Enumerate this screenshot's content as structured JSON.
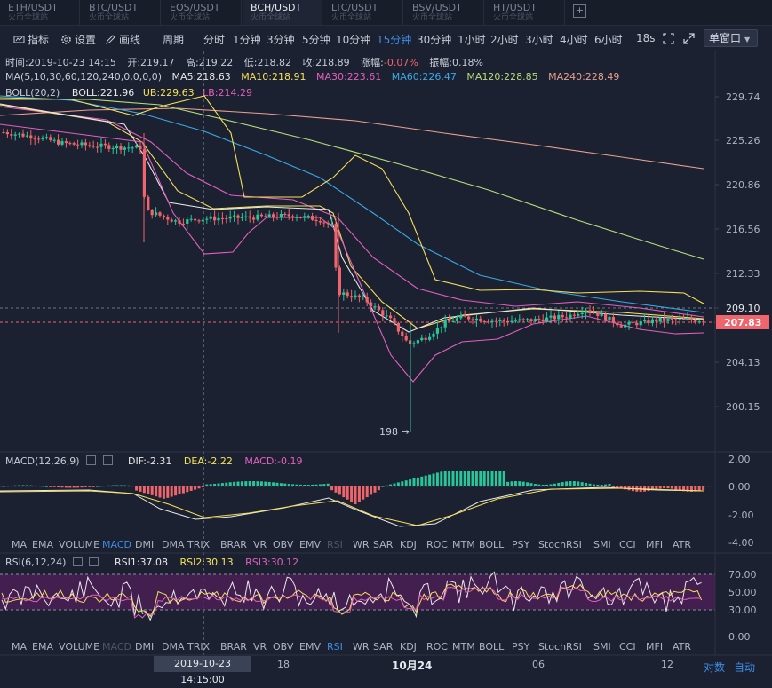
{
  "tabs": [
    {
      "pair": "ETH/USDT",
      "exchange": "火币全球站"
    },
    {
      "pair": "BTC/USDT",
      "exchange": "火币全球站"
    },
    {
      "pair": "EOS/USDT",
      "exchange": "火币全球站"
    },
    {
      "pair": "BCH/USDT",
      "exchange": "火币全球站",
      "active": true
    },
    {
      "pair": "LTC/USDT",
      "exchange": "火币全球站"
    },
    {
      "pair": "BSV/USDT",
      "exchange": "火币全球站"
    },
    {
      "pair": "HT/USDT",
      "exchange": "火币全球站"
    }
  ],
  "add_tab": "+",
  "toolbar": {
    "indicators": "指标",
    "settings": "设置",
    "draw": "画线",
    "period": "周期",
    "periods": [
      "分时",
      "1分钟",
      "3分钟",
      "5分钟",
      "10分钟",
      "15分钟",
      "30分钟",
      "1小时",
      "2小时",
      "3小时",
      "4小时",
      "6小时"
    ],
    "active_period": "15分钟",
    "more": "18s",
    "window": "单窗口"
  },
  "info": {
    "time": "时间:2019-10-23 14:15",
    "open": "开:219.17",
    "high": "高:219.22",
    "low": "低:218.82",
    "close": "收:218.89",
    "change_label": "涨幅:",
    "change_value": "-0.07%",
    "amp": "振幅:0.18%"
  },
  "ma": {
    "label": "MA(5,10,30,60,120,240,0,0,0,0)",
    "ma5": "MA5:218.63",
    "ma10": "MA10:218.91",
    "ma30": "MA30:223.61",
    "ma60": "MA60:226.47",
    "ma120": "MA120:228.85",
    "ma240": "MA240:228.49"
  },
  "boll": {
    "label": "BOLL(20,2)",
    "boll": "BOLL:221.96",
    "ub": "UB:229.63",
    "lb": "LB:214.29"
  },
  "price_axis": [
    "229.74",
    "225.26",
    "220.86",
    "216.56",
    "212.33",
    "209.10",
    "204.13",
    "200.15"
  ],
  "current_price": "207.83",
  "low_marker": "198 →",
  "macd": {
    "label": "MACD(12,26,9)",
    "dif": "DIF:-2.31",
    "dea": "DEA:-2.22",
    "macd": "MACD:-0.19",
    "axis": [
      "2.00",
      "0.00",
      "-2.00",
      "-4.00"
    ]
  },
  "indicator_tabs": [
    "MA",
    "EMA",
    "VOLUME",
    "MACD",
    "DMI",
    "DMA",
    "TRIX",
    "BRAR",
    "VR",
    "OBV",
    "EMV",
    "RSI",
    "WR",
    "SAR",
    "KDJ",
    "ROC",
    "MTM",
    "BOLL",
    "PSY",
    "StochRSI",
    "SMI",
    "CCI",
    "MFI",
    "ATR"
  ],
  "rsi": {
    "label": "RSI(6,12,24)",
    "rsi1": "RSI1:37.08",
    "rsi2": "RSI2:30.13",
    "rsi3": "RSI3:30.12",
    "axis": [
      "70.00",
      "50.00",
      "30.00",
      "0.00"
    ]
  },
  "time_axis": {
    "cursor": "2019-10-23 14:15:00",
    "labels": [
      "18",
      "10月24",
      "06",
      "12"
    ]
  },
  "bottom": {
    "log": "对数",
    "auto": "自动"
  },
  "colors": {
    "bg": "#1b2130",
    "up": "#26c79b",
    "down": "#f0646b",
    "ma5": "#e8e8e8",
    "ma10": "#f6e05a",
    "ma30": "#e45fbf",
    "ma60": "#3ba8e6",
    "ma120": "#b6de7c",
    "ma240": "#e9a08e",
    "accent": "#3d8ee8"
  },
  "chart_data": [
    {
      "type": "candlestick",
      "title": "BCH/USDT 15分钟",
      "y_axis_ticks": [
        229.74,
        225.26,
        220.86,
        216.56,
        212.33,
        209.1,
        204.13,
        200.15
      ],
      "current_price": 207.83,
      "annotated_low": 198,
      "series": [
        {
          "name": "MA5",
          "value": 218.63
        },
        {
          "name": "MA10",
          "value": 218.91
        },
        {
          "name": "MA30",
          "value": 223.61
        },
        {
          "name": "MA60",
          "value": 226.47
        },
        {
          "name": "MA120",
          "value": 228.85
        },
        {
          "name": "MA240",
          "value": 228.49
        },
        {
          "name": "BOLL",
          "value": 221.96
        },
        {
          "name": "UB",
          "value": 229.63
        },
        {
          "name": "LB",
          "value": 214.29
        }
      ]
    },
    {
      "type": "bar",
      "title": "MACD(12,26,9)",
      "y_axis_ticks": [
        2.0,
        0.0,
        -2.0,
        -4.0
      ],
      "series": [
        {
          "name": "DIF",
          "value": -2.31
        },
        {
          "name": "DEA",
          "value": -2.22
        },
        {
          "name": "MACD",
          "value": -0.19
        }
      ]
    },
    {
      "type": "line",
      "title": "RSI(6,12,24)",
      "y_axis_ticks": [
        70,
        50,
        30,
        0
      ],
      "series": [
        {
          "name": "RSI1",
          "value": 37.08
        },
        {
          "name": "RSI2",
          "value": 30.13
        },
        {
          "name": "RSI3",
          "value": 30.12
        }
      ]
    }
  ]
}
